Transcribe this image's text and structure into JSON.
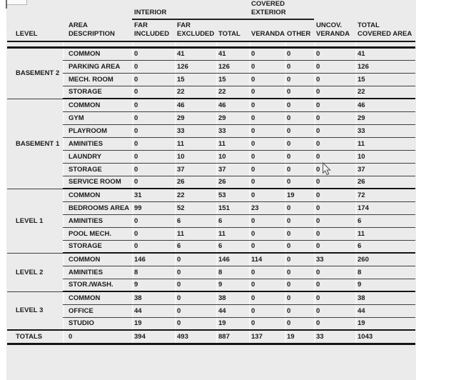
{
  "page": {
    "background_color": "#ffffff",
    "sheet_color": "#ebebeb"
  },
  "table": {
    "header": {
      "group_interior": "INTERIOR",
      "group_covered_exterior": "COVERED\nEXTERIOR",
      "col_level": "LEVEL",
      "col_area": "AREA\nDESCRIPTION",
      "col_far_included": "FAR\nINCLUDED",
      "col_far_excluded": "FAR\nEXCLUDED",
      "col_total": "TOTAL",
      "col_veranda": "VERANDA",
      "col_other": "OTHER",
      "col_uncov_veranda": "UNCOV.\nVERANDA",
      "col_total_covered": "TOTAL\nCOVERED AREA"
    },
    "value_columns": [
      "FAR INCLUDED",
      "FAR EXCLUDED",
      "TOTAL",
      "VERANDA",
      "OTHER",
      "UNCOV. VERANDA",
      "TOTAL COVERED AREA"
    ],
    "groups": [
      {
        "level": "BASEMENT 2",
        "rows": [
          {
            "area": "COMMON",
            "values": [
              0,
              41,
              41,
              0,
              0,
              0,
              41
            ]
          },
          {
            "area": "PARKING AREA",
            "values": [
              0,
              126,
              126,
              0,
              0,
              0,
              126
            ]
          },
          {
            "area": "MECH. ROOM",
            "values": [
              0,
              15,
              15,
              0,
              0,
              0,
              15
            ]
          },
          {
            "area": "STORAGE",
            "values": [
              0,
              22,
              22,
              0,
              0,
              0,
              22
            ]
          }
        ]
      },
      {
        "level": "BASEMENT 1",
        "rows": [
          {
            "area": "COMMON",
            "values": [
              0,
              46,
              46,
              0,
              0,
              0,
              46
            ]
          },
          {
            "area": "GYM",
            "values": [
              0,
              29,
              29,
              0,
              0,
              0,
              29
            ]
          },
          {
            "area": "PLAYROOM",
            "values": [
              0,
              33,
              33,
              0,
              0,
              0,
              33
            ]
          },
          {
            "area": "AMINITIES",
            "values": [
              0,
              11,
              11,
              0,
              0,
              0,
              11
            ]
          },
          {
            "area": "LAUNDRY",
            "values": [
              0,
              10,
              10,
              0,
              0,
              0,
              10
            ]
          },
          {
            "area": "STORAGE",
            "values": [
              0,
              37,
              37,
              0,
              0,
              0,
              37
            ]
          },
          {
            "area": "SERVICE ROOM",
            "values": [
              0,
              26,
              26,
              0,
              0,
              0,
              26
            ]
          }
        ]
      },
      {
        "level": "LEVEL 1",
        "rows": [
          {
            "area": "COMMON",
            "values": [
              31,
              22,
              53,
              0,
              19,
              0,
              72
            ]
          },
          {
            "area": "BEDROOMS AREA",
            "values": [
              99,
              52,
              151,
              23,
              0,
              0,
              174
            ]
          },
          {
            "area": "AMINITIES",
            "values": [
              0,
              6,
              6,
              0,
              0,
              0,
              6
            ]
          },
          {
            "area": "POOL MECH.",
            "values": [
              0,
              11,
              11,
              0,
              0,
              0,
              11
            ]
          },
          {
            "area": "STORAGE",
            "values": [
              0,
              6,
              6,
              0,
              0,
              0,
              6
            ]
          }
        ]
      },
      {
        "level": "LEVEL 2",
        "rows": [
          {
            "area": "COMMON",
            "values": [
              146,
              0,
              146,
              114,
              0,
              33,
              260
            ]
          },
          {
            "area": "AMINITIES",
            "values": [
              8,
              0,
              8,
              0,
              0,
              0,
              8
            ]
          },
          {
            "area": "STOR./WASH.",
            "values": [
              9,
              0,
              9,
              0,
              0,
              0,
              9
            ]
          }
        ]
      },
      {
        "level": "LEVEL 3",
        "rows": [
          {
            "area": "COMMON",
            "values": [
              38,
              0,
              38,
              0,
              0,
              0,
              38
            ]
          },
          {
            "area": "OFFICE",
            "values": [
              44,
              0,
              44,
              0,
              0,
              0,
              44
            ]
          },
          {
            "area": "STUDIO",
            "values": [
              19,
              0,
              19,
              0,
              0,
              0,
              19
            ]
          }
        ]
      }
    ],
    "totals": {
      "label": "TOTALS",
      "area_value": "0",
      "values": [
        394,
        493,
        887,
        137,
        19,
        33,
        1043
      ]
    }
  }
}
